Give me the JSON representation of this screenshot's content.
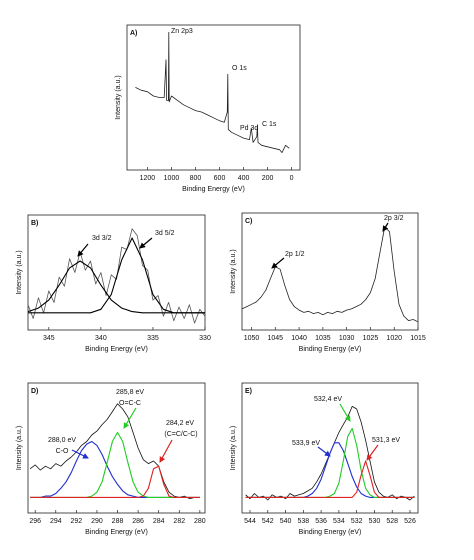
{
  "chart_data": [
    {
      "type": "line",
      "title": "A)",
      "xlabel": "Binding Energy (eV)",
      "ylabel": "Intensity (a.u.)",
      "xlim": [
        1370,
        -70
      ],
      "xticks": [
        1200,
        1000,
        800,
        600,
        400,
        200,
        0
      ],
      "ylim": [
        0,
        100
      ],
      "x": [
        1300,
        1250,
        1200,
        1150,
        1100,
        1060,
        1045,
        1040,
        1025,
        1022,
        1019,
        1000,
        950,
        900,
        850,
        800,
        750,
        700,
        650,
        600,
        560,
        535,
        531,
        527,
        500,
        450,
        400,
        350,
        335,
        320,
        290,
        285,
        280,
        250,
        200,
        150,
        100,
        80,
        50,
        20
      ],
      "series": [
        {
          "color": "#222222",
          "values": [
            57,
            55,
            54,
            51,
            50,
            50,
            76,
            48,
            48,
            95,
            47,
            51,
            48,
            45,
            43,
            41,
            40,
            38,
            36,
            34,
            33,
            40,
            66,
            28,
            26,
            24,
            22,
            21,
            29,
            19,
            23,
            31,
            19,
            17,
            16,
            15,
            14,
            12,
            17,
            15
          ]
        }
      ],
      "annotations": [
        "Zn 2p3",
        "O 1s",
        "Pd 3d",
        "C 1s"
      ]
    },
    {
      "type": "line",
      "title": "B)",
      "xlabel": "Binding Energy (eV)",
      "ylabel": "Intensity (a.u.)",
      "xlim": [
        347,
        330
      ],
      "xticks": [
        345,
        340,
        335,
        330
      ],
      "ylim": [
        0,
        100
      ],
      "x": [
        347,
        346.5,
        346,
        345.5,
        345,
        344.5,
        344,
        343.5,
        343,
        342.5,
        342,
        341.5,
        341,
        340.5,
        340,
        339.5,
        339,
        338.5,
        338,
        337.5,
        337,
        336.5,
        336,
        335.5,
        335,
        334.5,
        334,
        333.5,
        333,
        332.5,
        332,
        331.5,
        331,
        330.5,
        330
      ],
      "series": [
        {
          "color": "#555555",
          "values": [
            22,
            10,
            28,
            15,
            34,
            24,
            46,
            38,
            62,
            50,
            68,
            52,
            60,
            40,
            50,
            30,
            48,
            44,
            72,
            70,
            88,
            82,
            56,
            52,
            26,
            30,
            12,
            24,
            8,
            20,
            10,
            22,
            6,
            18,
            12
          ]
        },
        {
          "color": "#000000",
          "x": [
            347,
            346,
            345,
            344,
            343,
            342,
            341,
            340,
            339,
            338,
            337,
            336,
            335,
            334,
            333,
            332,
            331,
            330
          ],
          "values": [
            16,
            19,
            26,
            39,
            54,
            60,
            54,
            39,
            26,
            19,
            16,
            15,
            15,
            15,
            15,
            15,
            15,
            15
          ]
        },
        {
          "color": "#000000",
          "x": [
            347,
            346,
            345,
            344,
            343,
            342,
            341,
            340,
            339,
            338,
            337,
            336,
            335,
            334,
            333,
            332,
            331,
            330
          ],
          "values": [
            15,
            15,
            15,
            15,
            15,
            15,
            15,
            18,
            31,
            61,
            80,
            61,
            31,
            18,
            15,
            15,
            15,
            15
          ]
        }
      ],
      "annotations": [
        "3d 3/2",
        "3d 5/2"
      ]
    },
    {
      "type": "line",
      "title": "C)",
      "xlabel": "Binding Energy (eV)",
      "ylabel": "Intensity (a.u.)",
      "xlim": [
        1052,
        1015
      ],
      "xticks": [
        1050,
        1045,
        1040,
        1035,
        1030,
        1025,
        1020,
        1015
      ],
      "ylim": [
        0,
        100
      ],
      "x": [
        1052,
        1051,
        1050,
        1049,
        1048,
        1047,
        1046,
        1045,
        1044,
        1043,
        1042,
        1041,
        1040,
        1039,
        1038,
        1037,
        1036,
        1035,
        1034,
        1033,
        1032,
        1031,
        1030,
        1029,
        1028,
        1027,
        1026,
        1025,
        1024,
        1023,
        1022,
        1021,
        1020,
        1019,
        1018,
        1017,
        1016,
        1015
      ],
      "series": [
        {
          "color": "#222222",
          "values": [
            18,
            20,
            22,
            24,
            28,
            34,
            44,
            54,
            52,
            38,
            26,
            20,
            17,
            15,
            16,
            14,
            15,
            13,
            15,
            14,
            16,
            15,
            17,
            18,
            20,
            22,
            26,
            32,
            44,
            66,
            88,
            84,
            50,
            22,
            12,
            8,
            9,
            7
          ]
        }
      ],
      "annotations": [
        "2p 1/2",
        "2p 3/2"
      ]
    },
    {
      "type": "line",
      "title": "D)",
      "xlabel": "Binding Energy (eV)",
      "ylabel": "Intensity (a.u.)",
      "xlim": [
        296.7,
        279.5
      ],
      "xticks": [
        296,
        294,
        292,
        290,
        288,
        286,
        284,
        282,
        280
      ],
      "ylim": [
        0,
        100
      ],
      "x": [
        296.5,
        296,
        295.5,
        295,
        294.5,
        294,
        293.5,
        293,
        292.5,
        292,
        291.5,
        291,
        290.5,
        290,
        289.5,
        289,
        288.5,
        288,
        287.5,
        287,
        286.5,
        286,
        285.5,
        285,
        284.5,
        284,
        283.5,
        283,
        282.5,
        282,
        281.5,
        281,
        280.5,
        280
      ],
      "series": [
        {
          "color": "#111111",
          "values": [
            34,
            37,
            33,
            36,
            34,
            38,
            36,
            40,
            43,
            47,
            52,
            55,
            60,
            63,
            68,
            72,
            78,
            84,
            80,
            74,
            62,
            50,
            41,
            38,
            40,
            36,
            24,
            16,
            13,
            12,
            13,
            11,
            12,
            12
          ]
        },
        {
          "color": "#1f2fd0",
          "values": [
            12,
            12,
            12,
            13,
            13,
            15,
            19,
            24,
            31,
            40,
            48,
            53,
            55,
            52,
            45,
            36,
            28,
            22,
            17,
            14,
            13,
            12,
            12,
            12,
            12,
            12,
            12,
            12,
            12,
            12,
            12,
            12,
            12,
            12
          ]
        },
        {
          "color": "#22cc22",
          "values": [
            12,
            12,
            12,
            12,
            12,
            12,
            12,
            12,
            12,
            12,
            12,
            12,
            13,
            16,
            24,
            39,
            55,
            62,
            55,
            39,
            24,
            16,
            13,
            12,
            12,
            12,
            12,
            12,
            12,
            12,
            12,
            12,
            12,
            12
          ]
        },
        {
          "color": "#dd2222",
          "values": [
            12,
            12,
            12,
            12,
            12,
            12,
            12,
            12,
            12,
            12,
            12,
            12,
            12,
            12,
            12,
            12,
            12,
            12,
            12,
            12,
            12,
            12,
            13,
            19,
            34,
            36,
            22,
            13,
            12,
            12,
            12,
            12,
            12,
            12
          ]
        }
      ],
      "annotations": [
        "285,8 eV",
        "O=C-C",
        "284,2 eV",
        "(C=C/C-C)",
        "288,0 eV",
        "C-O"
      ]
    },
    {
      "type": "line",
      "title": "E)",
      "xlabel": "Binding Energy (eV)",
      "ylabel": "Intensity (a.u.)",
      "xlim": [
        544.9,
        525.1
      ],
      "xticks": [
        544,
        542,
        540,
        538,
        536,
        534,
        532,
        530,
        528,
        526
      ],
      "ylim": [
        0,
        100
      ],
      "x": [
        544.5,
        544,
        543.5,
        543,
        542.5,
        542,
        541.5,
        541,
        540.5,
        540,
        539.5,
        539,
        538.5,
        538,
        537.5,
        537,
        536.5,
        536,
        535.5,
        535,
        534.5,
        534,
        533.5,
        533,
        532.5,
        532,
        531.5,
        531,
        530.5,
        530,
        529.5,
        529,
        528.5,
        528,
        527.5,
        527,
        526.5,
        526,
        525.5
      ],
      "series": [
        {
          "color": "#111111",
          "values": [
            14,
            11,
            15,
            12,
            13,
            10,
            14,
            12,
            13,
            11,
            15,
            13,
            14,
            15,
            17,
            19,
            24,
            30,
            38,
            46,
            54,
            62,
            68,
            74,
            82,
            80,
            70,
            56,
            40,
            24,
            16,
            13,
            12,
            14,
            11,
            13,
            12,
            10,
            13
          ]
        },
        {
          "color": "#1f2fd0",
          "values": [
            12,
            12,
            12,
            12,
            12,
            12,
            12,
            12,
            12,
            12,
            12,
            12,
            12,
            12,
            13,
            15,
            19,
            26,
            36,
            46,
            54,
            54,
            48,
            38,
            28,
            20,
            15,
            13,
            12,
            12,
            12,
            12,
            12,
            12,
            12,
            12,
            12,
            12,
            12
          ]
        },
        {
          "color": "#22cc22",
          "values": [
            12,
            12,
            12,
            12,
            12,
            12,
            12,
            12,
            12,
            12,
            12,
            12,
            12,
            12,
            12,
            12,
            12,
            12,
            12,
            13,
            15,
            23,
            40,
            59,
            65,
            52,
            33,
            19,
            14,
            12,
            12,
            12,
            12,
            12,
            12,
            12,
            12,
            12,
            12
          ]
        },
        {
          "color": "#dd2222",
          "values": [
            12,
            12,
            12,
            12,
            12,
            12,
            12,
            12,
            12,
            12,
            12,
            12,
            12,
            12,
            12,
            12,
            12,
            12,
            12,
            12,
            12,
            12,
            12,
            12,
            12,
            16,
            29,
            40,
            29,
            16,
            12,
            12,
            12,
            12,
            12,
            12,
            12,
            12,
            12
          ]
        }
      ],
      "annotations": [
        "532,4 eV",
        "533,9 eV",
        "531,3 eV"
      ]
    }
  ]
}
